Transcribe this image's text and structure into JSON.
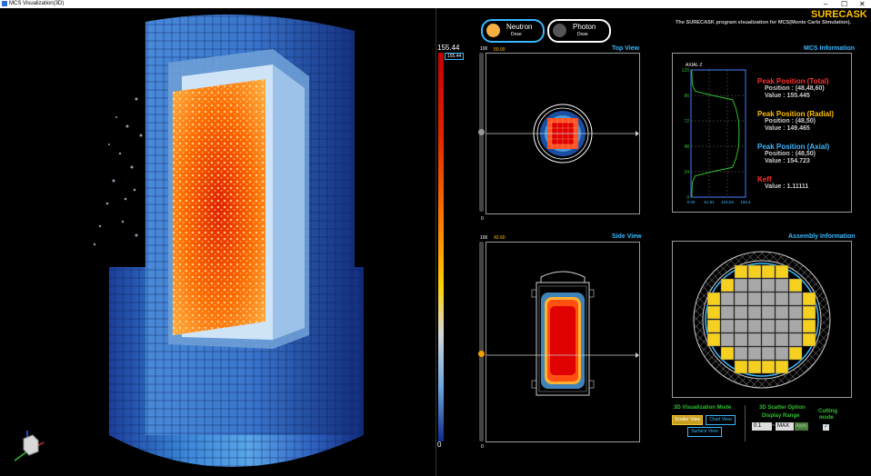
{
  "window": {
    "title": "MCS Visualization(3D)",
    "minimize": "–",
    "maximize": "☐",
    "close": "✕"
  },
  "legend": {
    "max": "155.44",
    "max_box": "155.44",
    "min": "0"
  },
  "toggle": {
    "neutron": "Neutron",
    "neutron_sub": "Dose",
    "photon": "Photon",
    "photon_sub": "Dose"
  },
  "brand": {
    "name": "SURECASK",
    "subtitle": "The SURECASK program visualization for MCS(Monte Carlo Simulation)."
  },
  "top_view": {
    "title": "Top View",
    "value": "50.00",
    "slider_max": "100",
    "slider_min": "0"
  },
  "side_view": {
    "title": "Side View",
    "value": "42.60",
    "slider_max": "100",
    "slider_min": "0"
  },
  "mcs": {
    "title": "MCS Information",
    "chart_title": "AXIAL Z",
    "peak_total": {
      "label": "Peak Position (Total)",
      "position": "Position : (48,48,60)",
      "value": "Value : 155.445"
    },
    "peak_radial": {
      "label": "Peak Position (Radial)",
      "position": "Position : (48,50)",
      "value": "Value : 149.465"
    },
    "peak_axial": {
      "label": "Peak Position (Axial)",
      "position": "Position : (48,50)",
      "value": "Value : 154.723"
    },
    "keff": {
      "label": "Keff",
      "value": "Value : 1.11111"
    }
  },
  "chart_data": {
    "type": "line",
    "title": "AXIAL Z",
    "x_ticks": [
      "0.00",
      "51.81",
      "103.63",
      "155.4"
    ],
    "y_ticks": [
      "0",
      "24",
      "48",
      "72",
      "96",
      "120"
    ],
    "xlim": [
      0,
      155.4
    ],
    "ylim": [
      0,
      120
    ],
    "grid": true,
    "series": [
      {
        "points": [
          [
            2,
            0
          ],
          [
            4,
            14
          ],
          [
            12,
            20
          ],
          [
            60,
            24
          ],
          [
            118,
            28
          ],
          [
            128,
            36
          ],
          [
            136,
            48
          ],
          [
            137,
            60
          ],
          [
            136,
            72
          ],
          [
            128,
            84
          ],
          [
            118,
            92
          ],
          [
            60,
            96
          ],
          [
            12,
            100
          ],
          [
            4,
            106
          ],
          [
            2,
            120
          ]
        ]
      }
    ]
  },
  "assembly": {
    "title": "Assembly Information"
  },
  "controls": {
    "viz_mode_title": "3D Visualization Mode",
    "scatter_view": "Scatter View",
    "chart_view": "Chart View",
    "surface_view": "Surface View",
    "scatter_option_title": "3D Scatter Option",
    "display_range": "Display Range",
    "range_min": "0.1",
    "range_dash": "~",
    "range_max": "MAX",
    "apply": "Apply",
    "cutting_title": "Cutting",
    "cutting_sub": "mode",
    "cutting_check": "✓"
  },
  "colors": {
    "accent": "#3ab8ff",
    "total": "#ff3030",
    "radial": "#ffc000",
    "axial": "#3ab8ff",
    "keff": "#ff3030",
    "neutron": "#f5b041",
    "photon": "#555555"
  }
}
